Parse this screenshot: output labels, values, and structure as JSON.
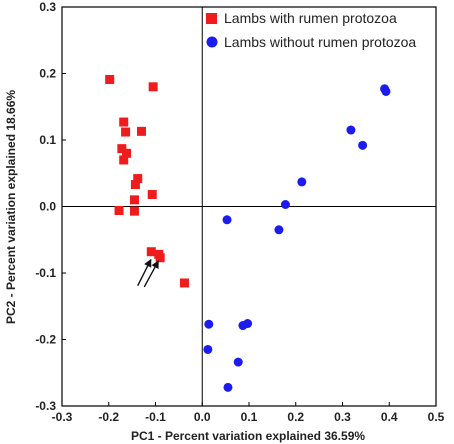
{
  "chart_data": {
    "type": "scatter",
    "xlabel": "PC1 - Percent variation explained 36.59%",
    "ylabel": "PC2 - Percent variation explained 18.66%",
    "xlim": [
      -0.3,
      0.5
    ],
    "ylim": [
      -0.3,
      0.3
    ],
    "xticks": [
      "-0.3",
      "-0.2",
      "-0.1",
      "0.0",
      "0.1",
      "0.2",
      "0.3",
      "0.4",
      "0.5"
    ],
    "yticks": [
      "-0.3",
      "-0.2",
      "-0.1",
      "0.0",
      "0.1",
      "0.2",
      "0.3"
    ],
    "grid": false,
    "zero_lines": true,
    "legend_position": "top-right",
    "series": [
      {
        "name": "Lambs with rumen protozoa",
        "marker": "square",
        "color": "#ee1c1c",
        "points": [
          [
            -0.198,
            0.191
          ],
          [
            -0.105,
            0.18
          ],
          [
            -0.168,
            0.127
          ],
          [
            -0.13,
            0.113
          ],
          [
            -0.164,
            0.112
          ],
          [
            -0.172,
            0.087
          ],
          [
            -0.162,
            0.08
          ],
          [
            -0.168,
            0.07
          ],
          [
            -0.138,
            0.042
          ],
          [
            -0.143,
            0.033
          ],
          [
            -0.107,
            0.018
          ],
          [
            -0.145,
            0.01
          ],
          [
            -0.178,
            -0.006
          ],
          [
            -0.145,
            -0.007
          ],
          [
            -0.109,
            -0.068
          ],
          [
            -0.093,
            -0.072
          ],
          [
            -0.09,
            -0.077
          ],
          [
            -0.038,
            -0.115
          ]
        ]
      },
      {
        "name": "Lambs without rumen protozoa",
        "marker": "circle",
        "color": "#1c1cf0",
        "points": [
          [
            0.39,
            0.177
          ],
          [
            0.393,
            0.173
          ],
          [
            0.318,
            0.115
          ],
          [
            0.343,
            0.092
          ],
          [
            0.213,
            0.037
          ],
          [
            0.178,
            0.003
          ],
          [
            0.053,
            -0.02
          ],
          [
            0.164,
            -0.035
          ],
          [
            0.014,
            -0.177
          ],
          [
            0.097,
            -0.176
          ],
          [
            0.087,
            -0.179
          ],
          [
            0.012,
            -0.215
          ],
          [
            0.077,
            -0.234
          ],
          [
            0.055,
            -0.272
          ]
        ]
      }
    ],
    "annotations": [
      {
        "type": "arrow",
        "from": [
          -0.138,
          -0.119
        ],
        "to": [
          -0.11,
          -0.08
        ]
      },
      {
        "type": "arrow",
        "from": [
          -0.124,
          -0.121
        ],
        "to": [
          -0.094,
          -0.082
        ]
      }
    ]
  }
}
